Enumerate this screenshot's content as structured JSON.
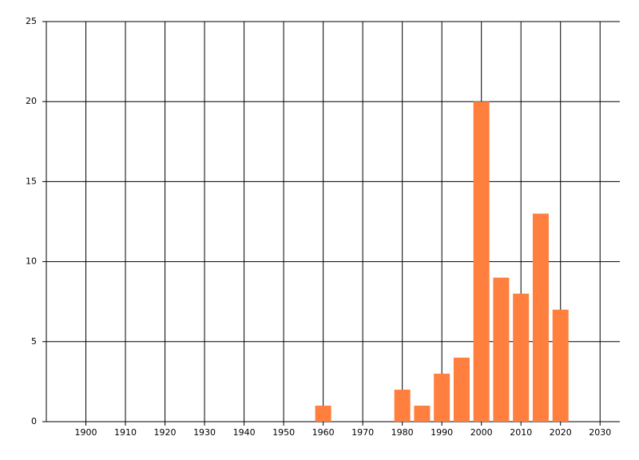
{
  "chart_data": {
    "type": "bar",
    "x": [
      1960,
      1980,
      1985,
      1990,
      1995,
      2000,
      2005,
      2010,
      2015,
      2020
    ],
    "values": [
      1,
      2,
      1,
      3,
      4,
      20,
      9,
      8,
      13,
      7
    ],
    "color": "#ff7f3f",
    "xlim": [
      1890,
      2035
    ],
    "xticks": [
      1900,
      1910,
      1920,
      1930,
      1940,
      1950,
      1960,
      1970,
      1980,
      1990,
      2000,
      2010,
      2020,
      2030
    ],
    "ylim": [
      0,
      25
    ],
    "yticks": [
      0,
      5,
      10,
      15,
      20,
      25
    ],
    "grid": true
  }
}
